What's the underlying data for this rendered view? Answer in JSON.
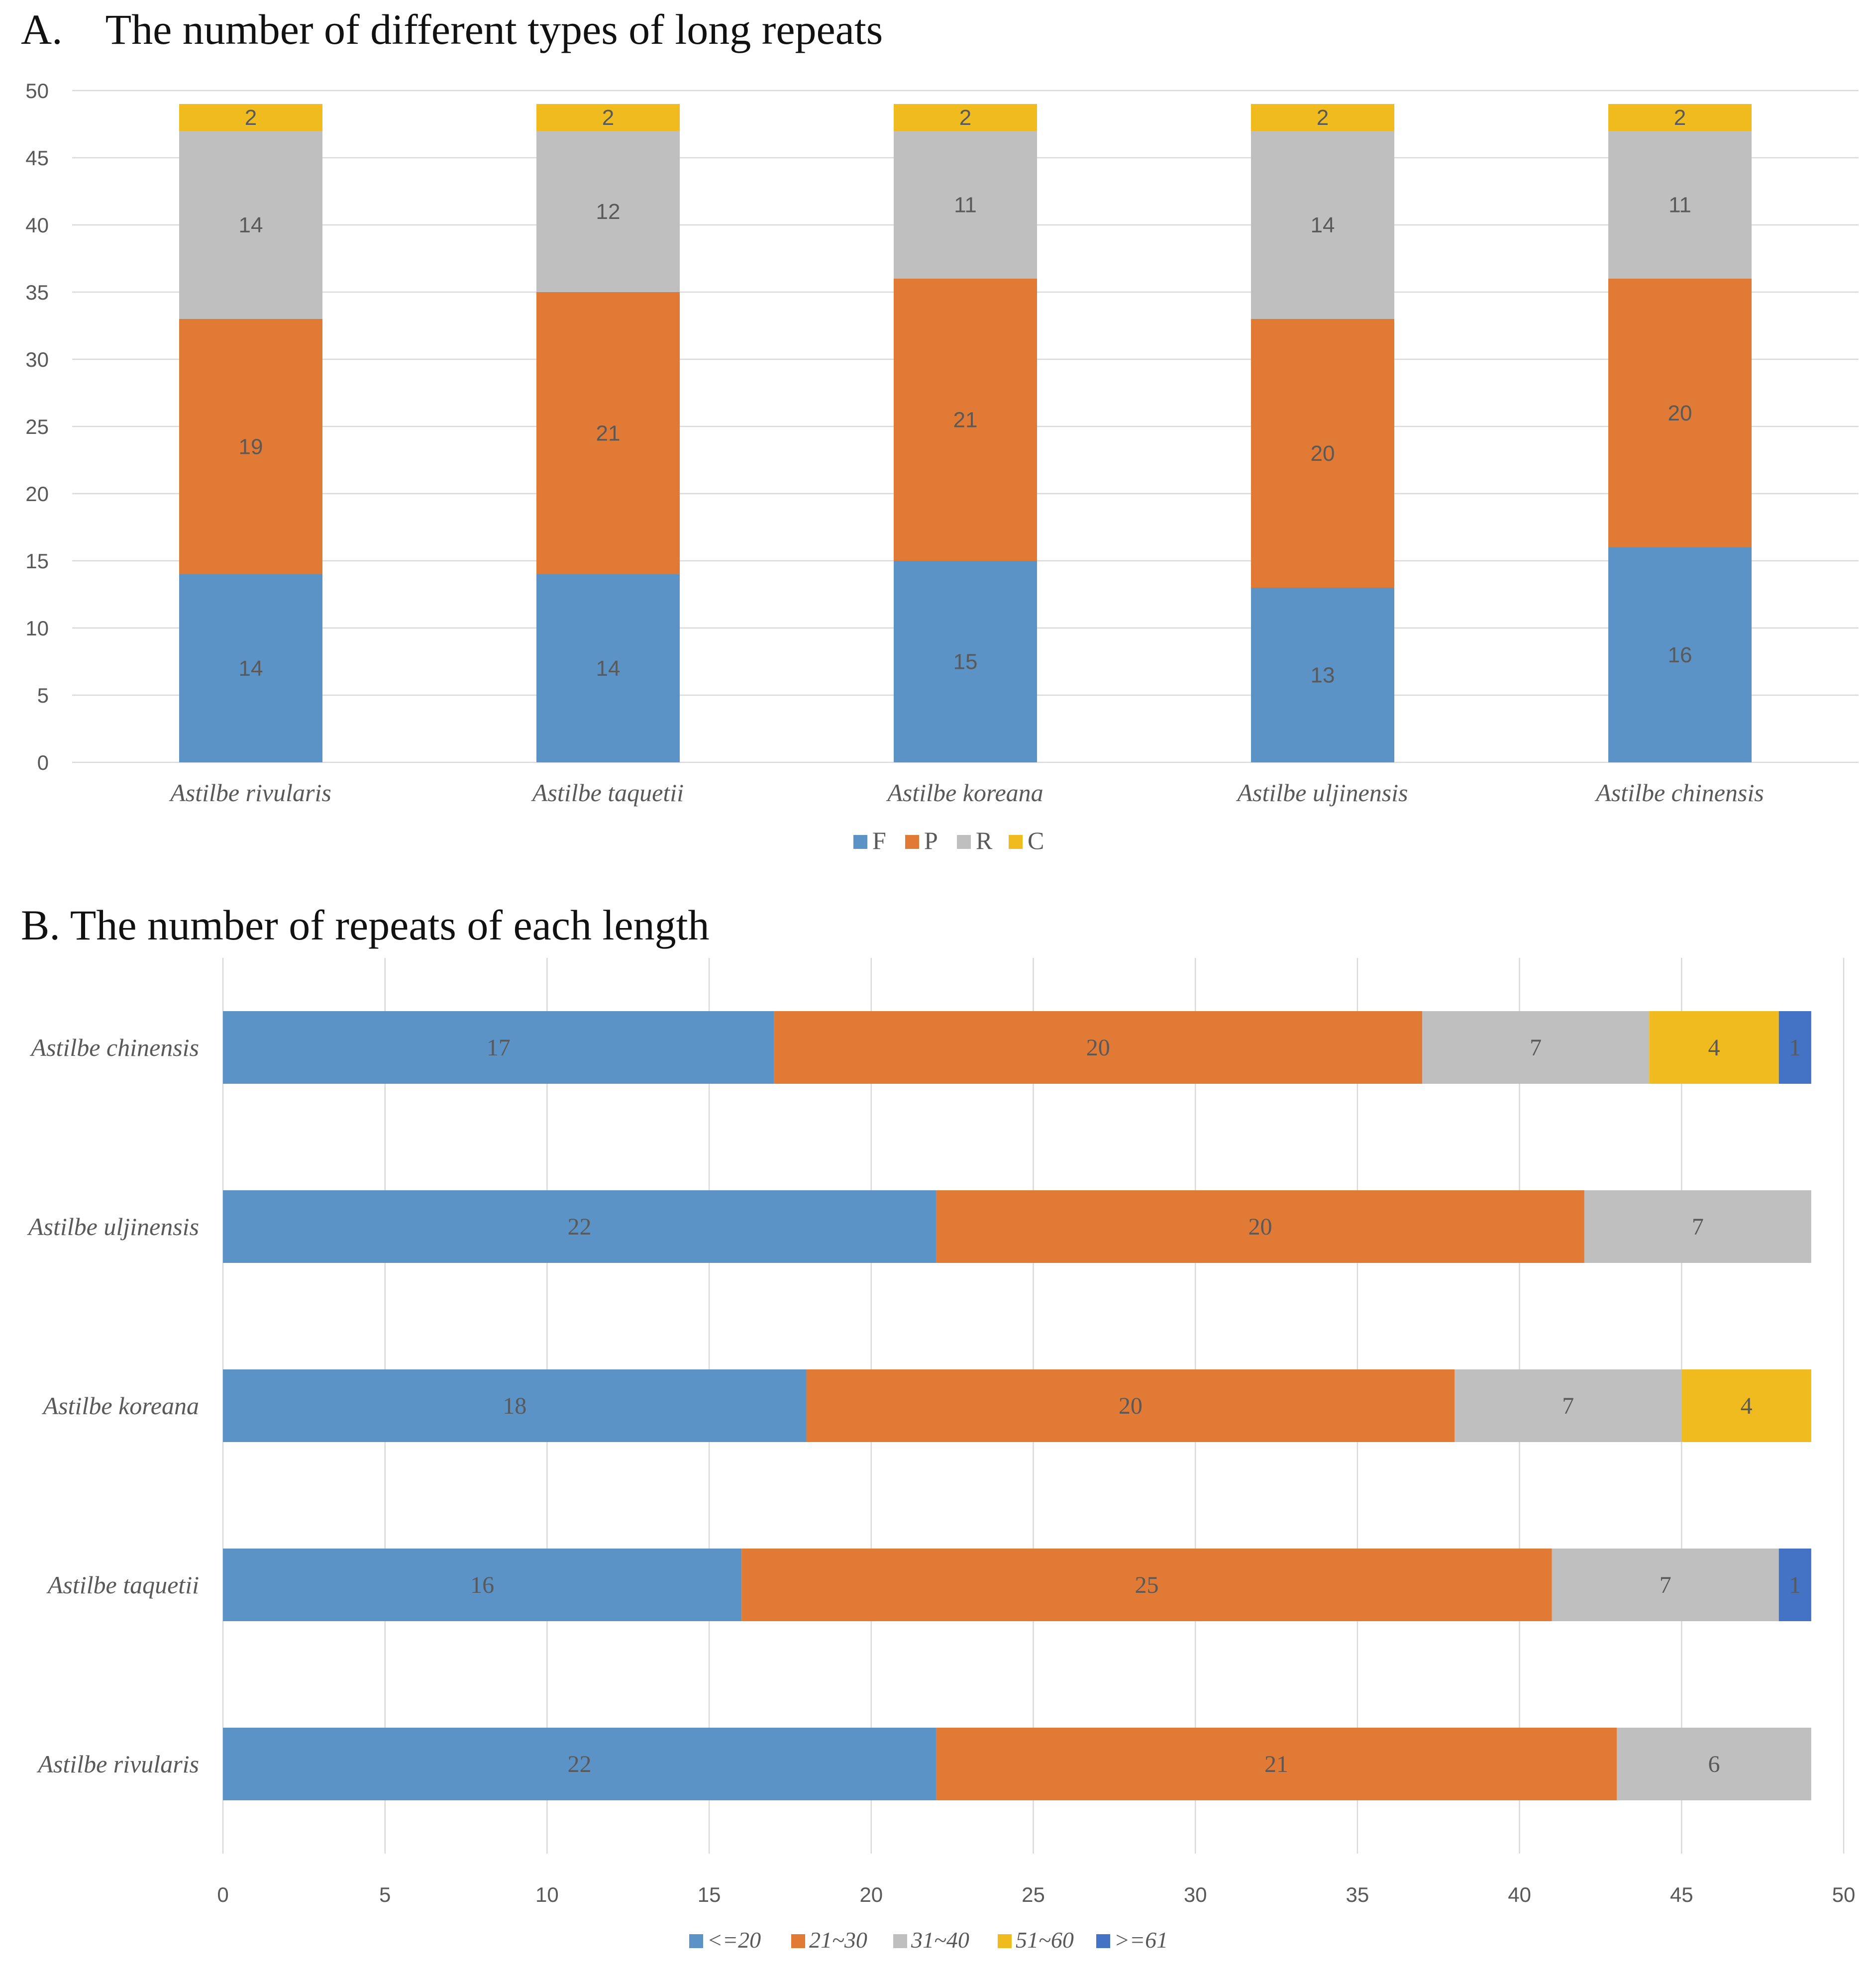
{
  "colors": {
    "F": "#5b93c7",
    "P": "#e07a35",
    "R": "#bfbfbf",
    "C": "#f0bb1f",
    "len_le20": "#5b93c7",
    "len_21_30": "#e07a35",
    "len_31_40": "#bfbfbf",
    "len_51_60": "#f0bb1f",
    "len_ge61": "#4472c4"
  },
  "chart_data": [
    {
      "type": "bar",
      "orientation": "vertical",
      "stacked": true,
      "title": "A. The number of different types of long repeats",
      "xlabel": "",
      "ylabel": "",
      "ylim": [
        0,
        50
      ],
      "yticks": [
        "0",
        "5",
        "10",
        "15",
        "20",
        "25",
        "30",
        "35",
        "40",
        "45",
        "50"
      ],
      "grid": true,
      "legend_position": "bottom",
      "categories": [
        "Astilbe rivularis",
        "Astilbe taquetii",
        "Astilbe koreana",
        "Astilbe uljinensis",
        "Astilbe chinensis"
      ],
      "series": [
        {
          "name": "F",
          "values": [
            14,
            14,
            15,
            13,
            16
          ]
        },
        {
          "name": "P",
          "values": [
            19,
            21,
            21,
            20,
            20
          ]
        },
        {
          "name": "R",
          "values": [
            14,
            12,
            11,
            14,
            11
          ]
        },
        {
          "name": "C",
          "values": [
            2,
            2,
            2,
            2,
            2
          ]
        }
      ]
    },
    {
      "type": "bar",
      "orientation": "horizontal",
      "stacked": true,
      "title": "B. The number of repeats of each length",
      "xlabel": "",
      "ylabel": "",
      "xlim": [
        0,
        50
      ],
      "xticks": [
        "0",
        "5",
        "10",
        "15",
        "20",
        "25",
        "30",
        "35",
        "40",
        "45",
        "50"
      ],
      "grid": true,
      "legend_position": "bottom",
      "categories": [
        "Astilbe chinensis",
        "Astilbe uljinensis",
        "Astilbe koreana",
        "Astilbe taquetii",
        "Astilbe rivularis"
      ],
      "series": [
        {
          "name": "<=20",
          "values": [
            17,
            22,
            18,
            16,
            22
          ]
        },
        {
          "name": "21~30",
          "values": [
            20,
            20,
            20,
            25,
            21
          ]
        },
        {
          "name": "31~40",
          "values": [
            7,
            7,
            7,
            7,
            6
          ]
        },
        {
          "name": "51~60",
          "values": [
            4,
            0,
            4,
            0,
            0
          ]
        },
        {
          "name": ">=61",
          "values": [
            1,
            0,
            0,
            1,
            0
          ]
        }
      ]
    }
  ]
}
